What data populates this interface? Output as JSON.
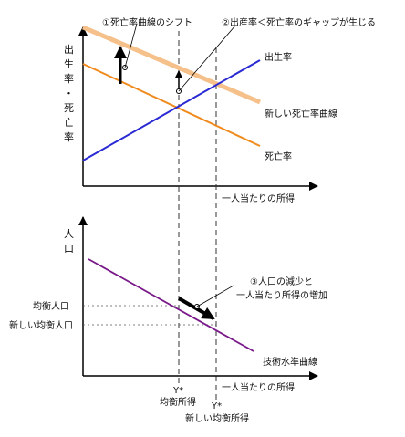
{
  "top_panel": {
    "y_axis_label": [
      "出",
      "生",
      "率",
      "・",
      "死",
      "亡",
      "率"
    ],
    "x_axis_label": "一人当たりの所得",
    "annotation_shift": "①死亡率曲線のシフト",
    "annotation_gap": "②出産率＜死亡率のギャップが生じる",
    "curve_birth": "出生率",
    "curve_new_death": "新しい死亡率曲線",
    "curve_death": "死亡率"
  },
  "bottom_panel": {
    "y_axis_label": [
      "人",
      "口"
    ],
    "x_axis_label": "一人当たりの所得",
    "annotation_line1": "③人口の減少と",
    "annotation_line2": "一人当たり所得の増加",
    "equilibrium_population": "均衡人口",
    "new_equilibrium_population": "新しい均衡人口",
    "curve_technology": "技術水準曲線",
    "y_star": "Y*",
    "y_star_label": "均衡所得",
    "y_star2": "Y*'",
    "y_star2_label": "新しい均衡所得"
  },
  "colors": {
    "birth_rate": "#2a2ad4",
    "death_rate": "#f08a1c",
    "new_death_rate": "#f5c08a",
    "technology": "#7a1a8a",
    "axis": "#000000"
  }
}
